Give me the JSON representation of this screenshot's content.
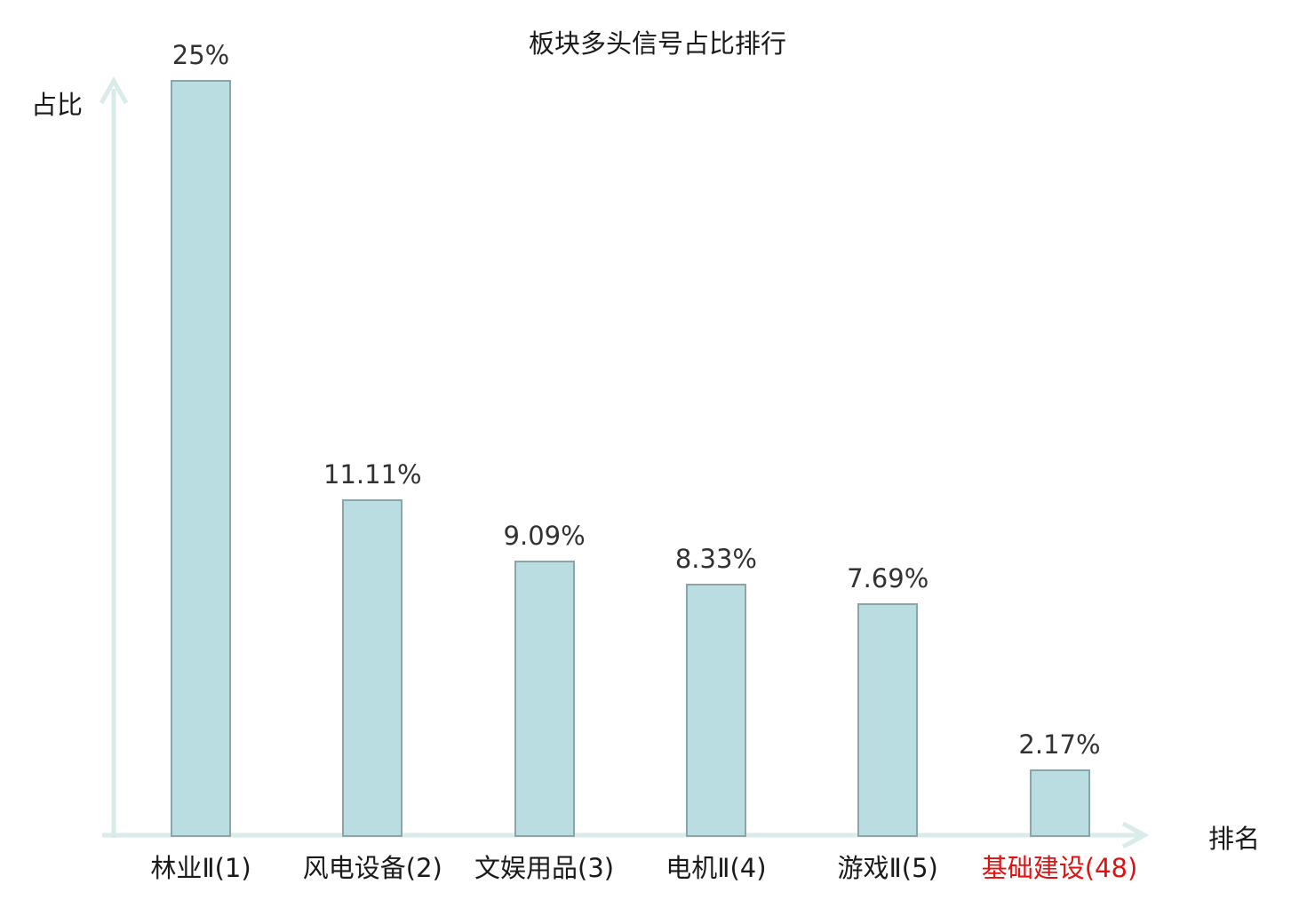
{
  "chart_data": {
    "type": "bar",
    "title": "板块多头信号占比排行",
    "ylabel": "占比",
    "xlabel": "排名",
    "categories": [
      "林业Ⅱ(1)",
      "风电设备(2)",
      "文娱用品(3)",
      "电机Ⅱ(4)",
      "游戏Ⅱ(5)",
      "基础建设(48)"
    ],
    "values": [
      25,
      11.11,
      9.09,
      8.33,
      7.69,
      2.17
    ],
    "value_labels": [
      "25%",
      "11.11%",
      "9.09%",
      "8.33%",
      "7.69%",
      "2.17%"
    ],
    "highlighted_category_index": 5,
    "ylim": [
      0,
      25
    ],
    "grid": false,
    "legend": null,
    "axis_arrows": true,
    "colors": {
      "bar_fill": "#b9dde1",
      "bar_border": "#8aa6ab",
      "axis": "#d9ece9",
      "value_label": "#323232",
      "category_label": "#1a1a1a",
      "highlight_label": "#e01212",
      "title": "#1a1a1a"
    }
  }
}
